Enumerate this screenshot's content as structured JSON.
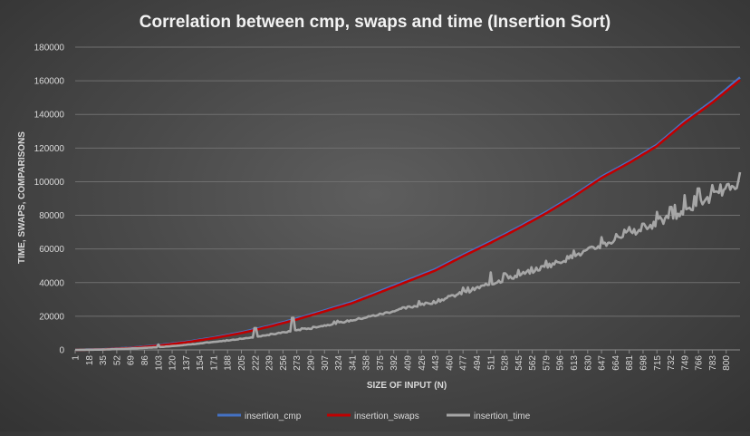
{
  "chart_data": {
    "type": "line",
    "title": "Correlation between cmp, swaps and time (Insertion Sort)",
    "xlabel": "SIZE OF INPUT (N)",
    "ylabel": "TIME, SWAPS, COMPARISONS",
    "ylim": [
      0,
      180000
    ],
    "yticks": [
      "0",
      "20000",
      "40000",
      "60000",
      "80000",
      "100000",
      "120000",
      "140000",
      "160000",
      "180000"
    ],
    "xticks": [
      "1",
      "18",
      "35",
      "52",
      "69",
      "86",
      "103",
      "120",
      "137",
      "154",
      "171",
      "188",
      "205",
      "222",
      "239",
      "256",
      "273",
      "290",
      "307",
      "324",
      "341",
      "358",
      "375",
      "392",
      "409",
      "426",
      "443",
      "460",
      "477",
      "494",
      "511",
      "528",
      "545",
      "562",
      "579",
      "596",
      "613",
      "630",
      "647",
      "664",
      "681",
      "698",
      "715",
      "732",
      "749",
      "766",
      "783",
      "800"
    ],
    "xlim": [
      1,
      817
    ],
    "grid": true,
    "legend_position": "bottom",
    "series": [
      {
        "name": "insertion_cmp",
        "color": "#4472c4",
        "points": [
          [
            1,
            0
          ],
          [
            35,
            400
          ],
          [
            69,
            1300
          ],
          [
            103,
            2800
          ],
          [
            137,
            4800
          ],
          [
            171,
            7400
          ],
          [
            205,
            10500
          ],
          [
            239,
            14300
          ],
          [
            273,
            18700
          ],
          [
            307,
            23500
          ],
          [
            341,
            28500
          ],
          [
            375,
            35000
          ],
          [
            409,
            41500
          ],
          [
            443,
            48000
          ],
          [
            477,
            56500
          ],
          [
            511,
            64500
          ],
          [
            545,
            73000
          ],
          [
            579,
            82000
          ],
          [
            613,
            92000
          ],
          [
            647,
            103000
          ],
          [
            681,
            112000
          ],
          [
            715,
            122000
          ],
          [
            749,
            136000
          ],
          [
            783,
            148000
          ],
          [
            817,
            162000
          ]
        ]
      },
      {
        "name": "insertion_swaps",
        "color": "#c00000",
        "points": [
          [
            1,
            0
          ],
          [
            35,
            300
          ],
          [
            69,
            1100
          ],
          [
            103,
            2500
          ],
          [
            137,
            4500
          ],
          [
            171,
            7000
          ],
          [
            205,
            10000
          ],
          [
            239,
            13800
          ],
          [
            273,
            18100
          ],
          [
            307,
            22900
          ],
          [
            341,
            27800
          ],
          [
            375,
            34200
          ],
          [
            409,
            40700
          ],
          [
            443,
            47200
          ],
          [
            477,
            55700
          ],
          [
            511,
            63700
          ],
          [
            545,
            72200
          ],
          [
            579,
            81200
          ],
          [
            613,
            91200
          ],
          [
            647,
            102200
          ],
          [
            681,
            111200
          ],
          [
            715,
            121200
          ],
          [
            749,
            135000
          ],
          [
            783,
            147000
          ],
          [
            817,
            160500
          ]
        ]
      },
      {
        "name": "insertion_time",
        "color": "#a6a6a6",
        "points": [
          [
            1,
            0
          ],
          [
            35,
            200
          ],
          [
            69,
            800
          ],
          [
            103,
            1600
          ],
          [
            137,
            3000
          ],
          [
            171,
            4600
          ],
          [
            205,
            6600
          ],
          [
            239,
            8900
          ],
          [
            273,
            11700
          ],
          [
            307,
            14500
          ],
          [
            341,
            17600
          ],
          [
            375,
            21100
          ],
          [
            409,
            25100
          ],
          [
            443,
            28600
          ],
          [
            477,
            34000
          ],
          [
            511,
            39300
          ],
          [
            545,
            44300
          ],
          [
            579,
            49600
          ],
          [
            613,
            55700
          ],
          [
            647,
            62100
          ],
          [
            681,
            68800
          ],
          [
            715,
            75300
          ],
          [
            749,
            82500
          ],
          [
            783,
            91000
          ],
          [
            817,
            100000
          ]
        ],
        "spikes": [
          [
            103,
            3200
          ],
          [
            222,
            13000
          ],
          [
            268,
            19000
          ],
          [
            290,
            12500
          ],
          [
            423,
            29000
          ],
          [
            460,
            32000
          ],
          [
            477,
            37000
          ],
          [
            511,
            46000
          ],
          [
            528,
            45500
          ],
          [
            545,
            47500
          ],
          [
            579,
            53000
          ],
          [
            613,
            59000
          ],
          [
            647,
            67000
          ],
          [
            681,
            73000
          ],
          [
            698,
            75000
          ],
          [
            715,
            82000
          ],
          [
            732,
            85000
          ],
          [
            749,
            92000
          ],
          [
            766,
            96000
          ],
          [
            783,
            98000
          ]
        ]
      }
    ]
  }
}
